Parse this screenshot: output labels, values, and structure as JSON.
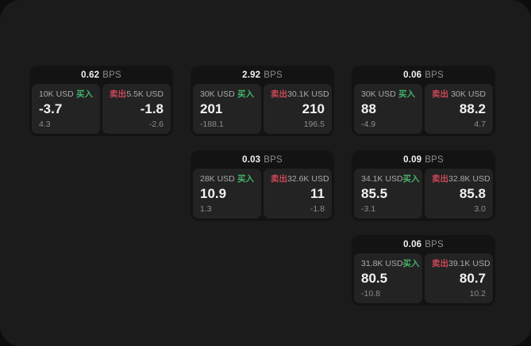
{
  "theme": {
    "backdrop": "#0d0d0d",
    "panel_bg": "#1b1b1b",
    "card_bg": "#131313",
    "cell_bg": "#232323",
    "text_primary": "#f2f2f2",
    "text_secondary": "#a9a9a9",
    "text_muted": "#8d8d8d",
    "buy_color": "#45b269",
    "sell_color": "#cc4757"
  },
  "labels": {
    "bps_unit": "BPS",
    "buy": "买入",
    "sell": "卖出"
  },
  "cards": [
    {
      "bps": "0.62",
      "buy": {
        "notional": "10K USD",
        "price": "-3.7",
        "delta": "4.3"
      },
      "sell": {
        "notional": "5.5K USD",
        "price": "-1.8",
        "delta": "-2.6"
      }
    },
    {
      "bps": "2.92",
      "buy": {
        "notional": "30K USD",
        "price": "201",
        "delta": "-188.1"
      },
      "sell": {
        "notional": "30.1K USD",
        "price": "210",
        "delta": "196.5"
      }
    },
    {
      "bps": "0.06",
      "buy": {
        "notional": "30K USD",
        "price": "88",
        "delta": "-4.9"
      },
      "sell": {
        "notional": "30K USD",
        "price": "88.2",
        "delta": "4.7"
      }
    },
    {
      "bps": "0.03",
      "buy": {
        "notional": "28K USD",
        "price": "10.9",
        "delta": "1.3"
      },
      "sell": {
        "notional": "32.6K USD",
        "price": "11",
        "delta": "-1.8"
      }
    },
    {
      "bps": "0.09",
      "buy": {
        "notional": "34.1K USD",
        "price": "85.5",
        "delta": "-3.1"
      },
      "sell": {
        "notional": "32.8K USD",
        "price": "85.8",
        "delta": "3.0"
      }
    },
    {
      "bps": "0.06",
      "buy": {
        "notional": "31.8K USD",
        "price": "80.5",
        "delta": "-10.8"
      },
      "sell": {
        "notional": "39.1K USD",
        "price": "80.7",
        "delta": "10.2"
      }
    }
  ]
}
